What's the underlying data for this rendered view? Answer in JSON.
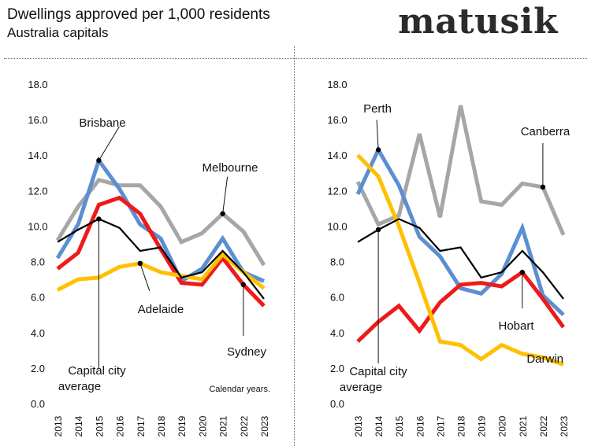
{
  "header": {
    "title": "Dwellings approved per 1,000 residents",
    "subtitle": "Australia capitals",
    "logo": "matusik"
  },
  "chart_data": [
    {
      "type": "line",
      "panel": "left",
      "categories": [
        "2013",
        "2014",
        "2015",
        "2016",
        "2017",
        "2018",
        "2019",
        "2020",
        "2021",
        "2022",
        "2023"
      ],
      "ylim": [
        0,
        18
      ],
      "yticks": [
        "0.0",
        "2.0",
        "4.0",
        "6.0",
        "8.0",
        "10.0",
        "12.0",
        "14.0",
        "16.0",
        "18.0"
      ],
      "grid": false,
      "note": "Calendar years.",
      "series": [
        {
          "name": "Melbourne",
          "color": "#a6a6a6",
          "values": [
            9.2,
            11.1,
            12.6,
            12.3,
            12.3,
            11.1,
            9.1,
            9.6,
            10.7,
            9.7,
            7.8
          ]
        },
        {
          "name": "Brisbane",
          "color": "#5b8fd1",
          "values": [
            8.2,
            10.1,
            13.7,
            12.1,
            10.1,
            9.3,
            6.9,
            7.6,
            9.3,
            7.4,
            6.9
          ]
        },
        {
          "name": "Sydney",
          "color": "#ee1a1a",
          "values": [
            7.6,
            8.5,
            11.2,
            11.6,
            10.7,
            8.7,
            6.8,
            6.7,
            8.2,
            6.7,
            5.5
          ]
        },
        {
          "name": "Adelaide",
          "color": "#ffc000",
          "values": [
            6.4,
            7.0,
            7.1,
            7.7,
            7.9,
            7.4,
            7.2,
            7.0,
            8.4,
            7.4,
            6.5
          ]
        },
        {
          "name": "Capital city average",
          "color": "#000000",
          "values": [
            9.1,
            9.8,
            10.4,
            9.9,
            8.6,
            8.8,
            7.1,
            7.4,
            8.6,
            7.4,
            5.9
          ]
        }
      ],
      "annotations": [
        {
          "text": "Brisbane",
          "series": 1,
          "index": 2
        },
        {
          "text": "Melbourne",
          "series": 0,
          "index": 8
        },
        {
          "text": "Adelaide",
          "series": 3,
          "index": 4
        },
        {
          "text": "Sydney",
          "series": 2,
          "index": 9
        },
        {
          "text": "Capital city",
          "text2": "average",
          "series": 4,
          "index": 2
        }
      ]
    },
    {
      "type": "line",
      "panel": "right",
      "categories": [
        "2013",
        "2014",
        "2015",
        "2016",
        "2017",
        "2018",
        "2019",
        "2020",
        "2021",
        "2022",
        "2023"
      ],
      "ylim": [
        0,
        18
      ],
      "yticks": [
        "0.0",
        "2.0",
        "4.0",
        "6.0",
        "8.0",
        "10.0",
        "12.0",
        "14.0",
        "16.0",
        "18.0"
      ],
      "grid": false,
      "series": [
        {
          "name": "Canberra",
          "color": "#a6a6a6",
          "values": [
            12.5,
            10.1,
            10.6,
            15.2,
            10.5,
            16.8,
            11.4,
            11.2,
            12.4,
            12.2,
            9.5
          ]
        },
        {
          "name": "Perth",
          "color": "#5b8fd1",
          "values": [
            11.8,
            14.3,
            12.3,
            9.4,
            8.3,
            6.5,
            6.2,
            7.3,
            9.9,
            6.1,
            5.0
          ]
        },
        {
          "name": "Hobart",
          "color": "#ee1a1a",
          "values": [
            3.5,
            4.6,
            5.5,
            4.1,
            5.7,
            6.7,
            6.8,
            6.6,
            7.4,
            5.9,
            4.3
          ]
        },
        {
          "name": "Darwin",
          "color": "#ffc000",
          "values": [
            14.0,
            12.8,
            10.0,
            6.8,
            3.5,
            3.3,
            2.5,
            3.3,
            2.8,
            2.6,
            2.2
          ]
        },
        {
          "name": "Capital city average",
          "color": "#000000",
          "values": [
            9.1,
            9.8,
            10.4,
            9.9,
            8.6,
            8.8,
            7.1,
            7.4,
            8.6,
            7.4,
            5.9
          ]
        }
      ],
      "annotations": [
        {
          "text": "Perth",
          "series": 1,
          "index": 1
        },
        {
          "text": "Canberra",
          "series": 0,
          "index": 9
        },
        {
          "text": "Hobart",
          "series": 2,
          "index": 8
        },
        {
          "text": "Darwin",
          "series": 3,
          "index": 10
        },
        {
          "text": "Capital city",
          "text2": "average",
          "series": 4,
          "index": 1
        }
      ]
    }
  ]
}
